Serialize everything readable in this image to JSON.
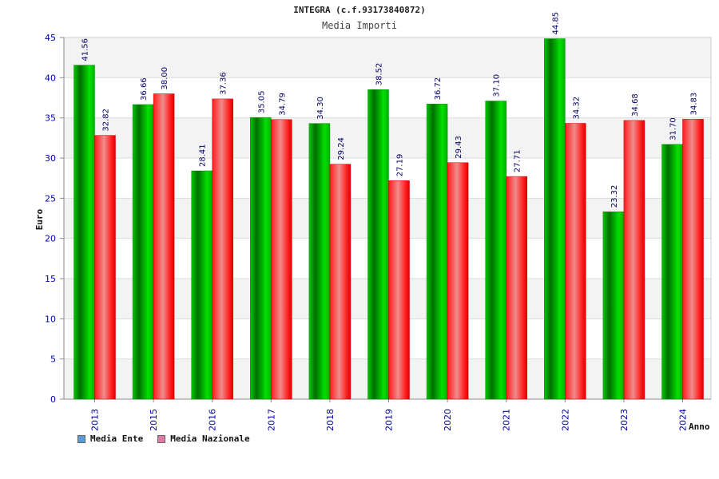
{
  "header": {
    "title": "INTEGRA (c.f.93173840872)",
    "subtitle": "Media Importi"
  },
  "legend": {
    "ente_label": "Media Ente",
    "nazionale_label": "Media Nazionale",
    "ente_color": "#5b9bd5",
    "nazionale_color": "#e07aa5"
  },
  "chart_data": {
    "type": "bar",
    "title": "Media Importi",
    "xlabel": "Anno",
    "ylabel": "Euro",
    "ylim": [
      0,
      45
    ],
    "yticks": [
      0,
      5,
      10,
      15,
      20,
      25,
      30,
      35,
      40,
      45
    ],
    "categories": [
      "2013",
      "2015",
      "2016",
      "2017",
      "2018",
      "2019",
      "2020",
      "2021",
      "2022",
      "2023",
      "2024"
    ],
    "series": [
      {
        "name": "Media Ente",
        "color": "#00aa00",
        "values": [
          41.56,
          36.66,
          28.41,
          35.05,
          34.3,
          38.52,
          36.72,
          37.1,
          44.85,
          23.32,
          31.7
        ],
        "labels": [
          "41.56",
          "36.66",
          "28.41",
          "35.05",
          "34.30",
          "38.52",
          "36.72",
          "37.10",
          "44.85",
          "23.32",
          "31.70"
        ]
      },
      {
        "name": "Media Nazionale",
        "color": "#ee1111",
        "values": [
          32.82,
          38.0,
          37.36,
          34.79,
          29.24,
          27.19,
          29.43,
          27.71,
          34.32,
          34.68,
          34.83
        ],
        "labels": [
          "32.82",
          "38.00",
          "37.36",
          "34.79",
          "29.24",
          "27.19",
          "29.43",
          "27.71",
          "34.32",
          "34.68",
          "34.83"
        ]
      }
    ]
  }
}
